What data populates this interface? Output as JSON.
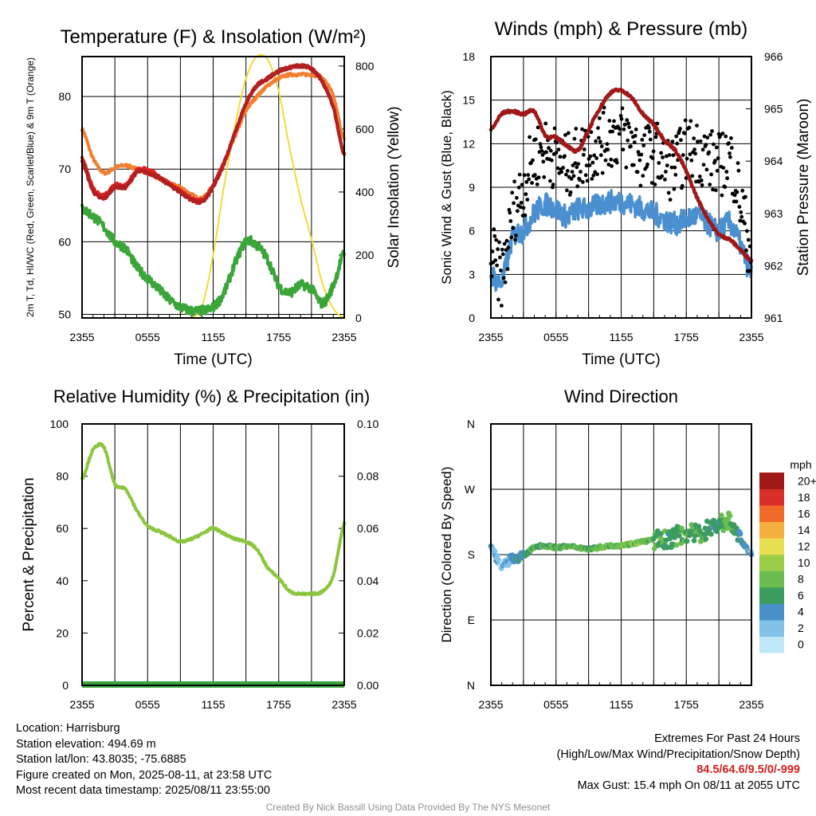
{
  "chart_data": [
    {
      "type": "line",
      "title": "Temperature (F) & Insolation (W/m²)",
      "xlabel": "Time (UTC)",
      "ylabel_left": "2m T, Td, HI/WC (Red, Green, Scarlet/Blue) & 9m T (Orange)",
      "ylabel_right": "Solar Insolation (Yellow)",
      "x_ticks": [
        "2355",
        "0555",
        "1155",
        "1755",
        "2355"
      ],
      "y_ticks_left": [
        50,
        60,
        70,
        80
      ],
      "y_ticks_right": [
        0,
        200,
        400,
        600,
        800
      ],
      "ylim_left": [
        49.5,
        85.5
      ],
      "ylim_right": [
        0,
        830
      ],
      "x_hours": [
        0,
        1,
        2,
        3,
        4,
        5,
        6,
        7,
        8,
        9,
        10,
        11,
        12,
        13,
        14,
        15,
        16,
        17,
        18,
        19,
        20,
        21,
        22,
        23,
        24
      ],
      "series": [
        {
          "name": "2m T",
          "axis": "left",
          "color": "#e02020",
          "values": [
            71.5,
            67.5,
            66.5,
            67.8,
            67.8,
            69.8,
            70.0,
            69.0,
            68.0,
            67.0,
            66.0,
            65.8,
            67.8,
            71.0,
            75.0,
            79.0,
            81.5,
            82.5,
            83.5,
            84.0,
            84.2,
            83.8,
            82.0,
            78.5,
            72.0
          ]
        },
        {
          "name": "HI/WC",
          "axis": "left",
          "color": "#b02020",
          "values": [
            71.0,
            67.0,
            66.0,
            67.5,
            67.5,
            69.5,
            69.5,
            68.8,
            67.8,
            66.8,
            65.8,
            65.5,
            67.5,
            70.8,
            75.0,
            79.0,
            81.5,
            82.5,
            83.5,
            84.0,
            84.2,
            83.8,
            82.0,
            78.5,
            72.0
          ]
        },
        {
          "name": "9m T",
          "axis": "left",
          "color": "#f08030",
          "values": [
            75.5,
            71.5,
            69.5,
            70.2,
            70.5,
            70.0,
            69.5,
            68.8,
            68.0,
            67.5,
            66.5,
            66.0,
            67.8,
            70.8,
            74.5,
            78.0,
            80.0,
            81.5,
            82.5,
            83.0,
            83.0,
            83.0,
            82.5,
            80.0,
            74.0
          ]
        },
        {
          "name": "Td",
          "axis": "left",
          "color": "#3aa63a",
          "values": [
            64.5,
            63.5,
            62.0,
            60.0,
            59.0,
            56.5,
            55.0,
            53.5,
            52.0,
            51.0,
            50.5,
            50.5,
            51.0,
            53.0,
            57.0,
            60.0,
            59.5,
            57.5,
            54.0,
            53.0,
            54.0,
            53.5,
            51.5,
            54.0,
            58.5
          ]
        },
        {
          "name": "Solar Insolation",
          "axis": "right",
          "color": "#f2dc3c",
          "values": [
            0,
            0,
            0,
            0,
            0,
            0,
            0,
            0,
            0,
            0,
            0,
            40,
            200,
            420,
            610,
            760,
            830,
            820,
            720,
            540,
            380,
            250,
            110,
            30,
            0
          ]
        }
      ]
    },
    {
      "type": "line",
      "title": "Winds (mph) & Pressure (mb)",
      "xlabel": "Time (UTC)",
      "ylabel_left": "Sonic Wind & Gust (Blue, Black)",
      "ylabel_right": "Station Pressure (Maroon)",
      "x_ticks": [
        "2355",
        "0555",
        "1155",
        "1755",
        "2355"
      ],
      "y_ticks_left": [
        0,
        3,
        6,
        9,
        12,
        15,
        18
      ],
      "y_ticks_right": [
        961,
        962,
        963,
        964,
        965,
        966
      ],
      "ylim_left": [
        0,
        18
      ],
      "ylim_right": [
        961,
        966
      ],
      "x_hours": [
        0,
        1,
        2,
        3,
        4,
        5,
        6,
        7,
        8,
        9,
        10,
        11,
        12,
        13,
        14,
        15,
        16,
        17,
        18,
        19,
        20,
        21,
        22,
        23,
        24
      ],
      "series": [
        {
          "name": "Sonic Wind",
          "axis": "left",
          "color": "#4a90d0",
          "values": [
            3.0,
            2.5,
            5.5,
            6.0,
            7.2,
            7.8,
            7.5,
            7.0,
            7.5,
            7.5,
            7.8,
            8.0,
            8.0,
            7.8,
            7.5,
            7.2,
            6.8,
            6.5,
            6.8,
            7.0,
            6.5,
            6.0,
            6.5,
            5.0,
            3.0
          ]
        },
        {
          "name": "Gust",
          "axis": "left",
          "color": "#000000",
          "values": [
            4.5,
            3.0,
            7.0,
            9.0,
            11.0,
            11.5,
            11.0,
            10.5,
            11.0,
            11.5,
            12.0,
            12.5,
            12.5,
            12.0,
            11.0,
            11.5,
            10.5,
            10.5,
            11.5,
            11.5,
            11.0,
            10.5,
            11.0,
            8.0,
            4.5
          ]
        },
        {
          "name": "Station Pressure",
          "axis": "right",
          "color": "#a01818",
          "values": [
            964.6,
            964.9,
            964.95,
            964.9,
            964.95,
            964.5,
            964.45,
            964.3,
            964.2,
            964.6,
            965.0,
            965.3,
            965.35,
            965.2,
            964.9,
            964.7,
            964.4,
            964.2,
            963.8,
            963.3,
            962.9,
            962.6,
            962.5,
            962.3,
            962.1
          ]
        }
      ]
    },
    {
      "type": "line",
      "title": "Relative Humidity (%) & Precipitation (in)",
      "xlabel": "",
      "ylabel_left": "Percent & Precipitation",
      "x_ticks": [
        "2355",
        "0555",
        "1155",
        "1755",
        "2355"
      ],
      "y_ticks_left": [
        0,
        20,
        40,
        60,
        80,
        100
      ],
      "y_ticks_right": [
        "0.00",
        "0.02",
        "0.04",
        "0.06",
        "0.08",
        "0.10"
      ],
      "ylim_left": [
        0,
        100
      ],
      "ylim_right": [
        0,
        0.1
      ],
      "x_hours": [
        0,
        1,
        2,
        3,
        4,
        5,
        6,
        7,
        8,
        9,
        10,
        11,
        12,
        13,
        14,
        15,
        16,
        17,
        18,
        19,
        20,
        21,
        22,
        23,
        24
      ],
      "series": [
        {
          "name": "Relative Humidity",
          "axis": "left",
          "color": "#8cc63e",
          "values": [
            79,
            90,
            91,
            77,
            75,
            67,
            61,
            59,
            57,
            55,
            56,
            58,
            60,
            58,
            56,
            55,
            52,
            45,
            41,
            36,
            35,
            35,
            36,
            42,
            62
          ]
        },
        {
          "name": "Precipitation",
          "axis": "right",
          "color": "#3aa63a",
          "values": [
            0,
            0,
            0,
            0,
            0,
            0,
            0,
            0,
            0,
            0,
            0,
            0,
            0,
            0,
            0,
            0,
            0,
            0,
            0,
            0,
            0,
            0,
            0,
            0,
            0
          ]
        }
      ]
    },
    {
      "type": "scatter",
      "title": "Wind Direction",
      "xlabel": "",
      "ylabel_left": "Direction (Colored By Speed)",
      "x_ticks": [
        "2355",
        "0555",
        "1155",
        "1755",
        "2355"
      ],
      "y_ticks_left": [
        "N",
        "E",
        "S",
        "W",
        "N"
      ],
      "ylim_degrees": [
        0,
        360
      ],
      "colorbar_title": "mph",
      "colorbar_labels": [
        "0",
        "2",
        "4",
        "6",
        "8",
        "10",
        "12",
        "14",
        "16",
        "18",
        "20+"
      ],
      "colorbar_colors": [
        "#bfe6f6",
        "#82c2e8",
        "#4a90c8",
        "#3c9c60",
        "#6bbd50",
        "#9ccd48",
        "#e8e050",
        "#f6b040",
        "#f06a2a",
        "#d83028",
        "#a01818"
      ],
      "x_hours": [
        0,
        1,
        2,
        3,
        4,
        5,
        6,
        7,
        8,
        9,
        10,
        11,
        12,
        13,
        14,
        15,
        16,
        17,
        18,
        19,
        20,
        21,
        22,
        23,
        24
      ],
      "direction_deg": [
        190,
        165,
        175,
        178,
        190,
        192,
        190,
        191,
        190,
        188,
        190,
        192,
        193,
        195,
        198,
        200,
        200,
        205,
        210,
        208,
        215,
        222,
        225,
        200,
        182
      ],
      "speed_mph": [
        3,
        2,
        4,
        5,
        7,
        7,
        7,
        7,
        7,
        7,
        8,
        8,
        8,
        8,
        8,
        7,
        6,
        6,
        7,
        7,
        6,
        6,
        7,
        5,
        3
      ]
    }
  ],
  "info": {
    "location": "Location: Harrisburg",
    "elevation": "Station elevation: 494.69 m",
    "latlon": "Station lat/lon: 43.8035; -75.6885",
    "created": "Figure created on Mon, 2025-08-11, at 23:58 UTC",
    "timestamp": "Most recent data timestamp: 2025/08/11 23:55:00"
  },
  "extremes": {
    "title": "Extremes For Past 24 Hours",
    "subtitle": "(High/Low/Max Wind/Precipitation/Snow Depth)",
    "values": "84.5/64.6/9.5/0/-999",
    "gust": "Max Gust: 15.4 mph On 08/11 at 2055 UTC"
  },
  "credit": "Created By Nick Bassill Using Data Provided By The NYS Mesonet"
}
